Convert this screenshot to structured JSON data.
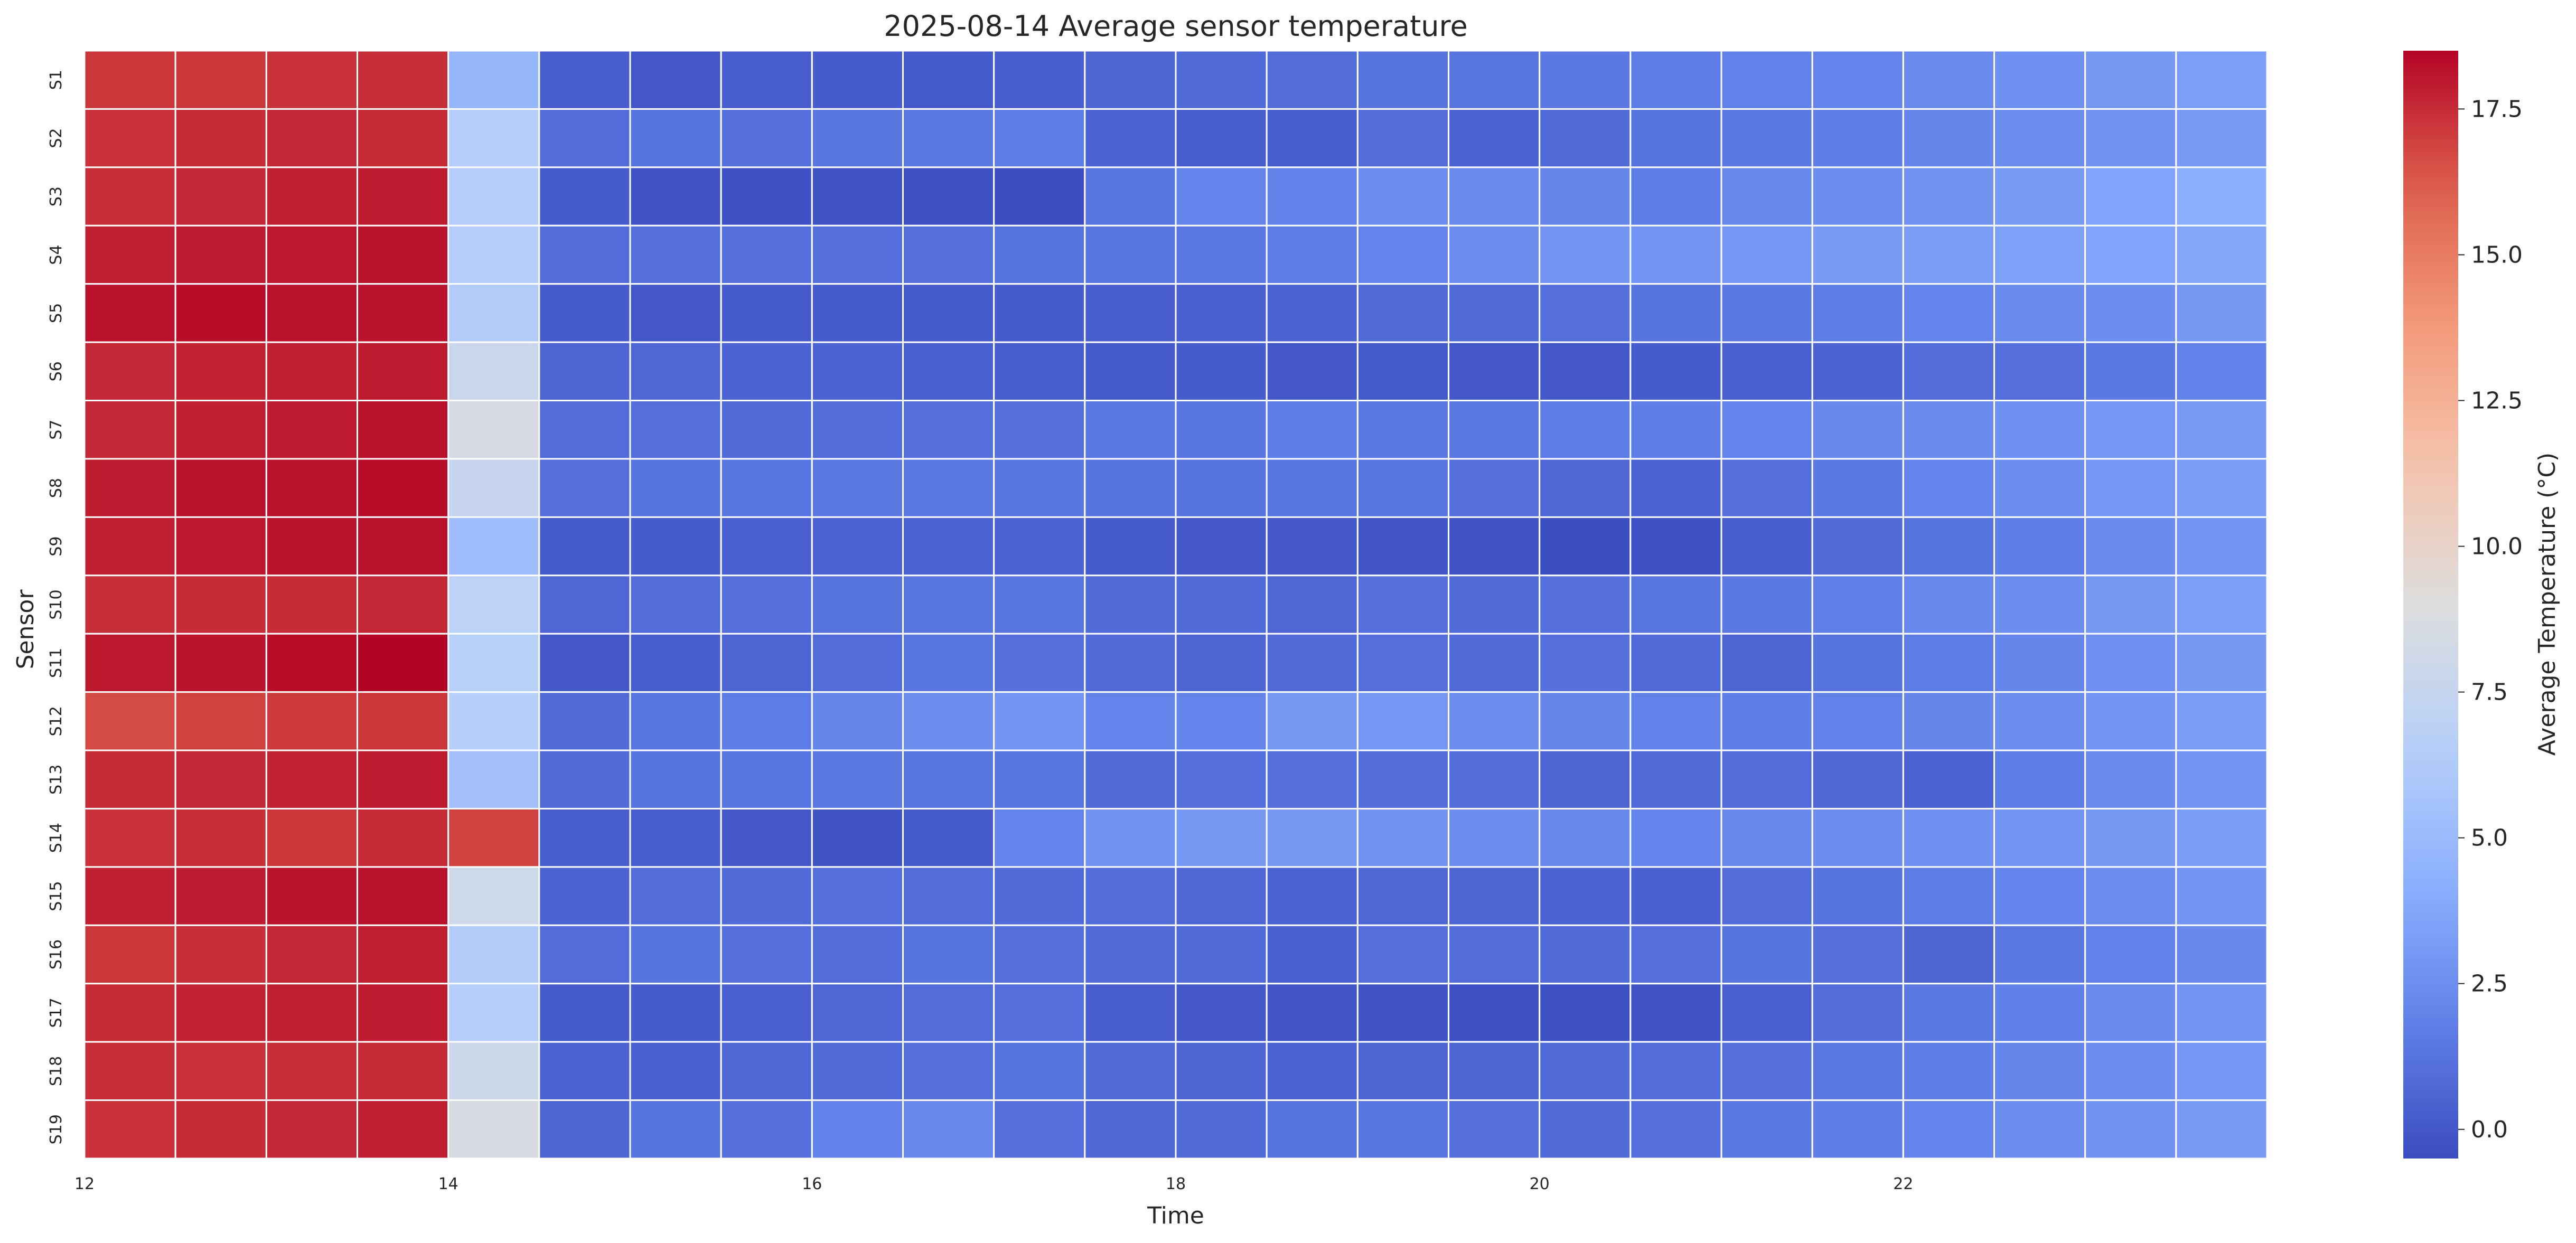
{
  "chart_data": {
    "type": "heatmap",
    "title": "2025-08-14 Average sensor temperature",
    "xlabel": "Time",
    "ylabel": "Sensor",
    "colorbar_label": "Average Temperature (°C)",
    "colormap": "coolwarm",
    "vmin": -0.5,
    "vmax": 18.5,
    "colorbar_ticks": [
      "0.0",
      "2.5",
      "5.0",
      "7.5",
      "10.0",
      "12.5",
      "15.0",
      "17.5"
    ],
    "x_tick_labels": [
      "12",
      "14",
      "16",
      "18",
      "20",
      "22"
    ],
    "x_tick_values": [
      12,
      14,
      16,
      18,
      20,
      22
    ],
    "x_range": [
      12,
      24
    ],
    "x_bins": [
      12.0,
      12.5,
      13.0,
      13.5,
      14.0,
      14.5,
      15.0,
      15.5,
      16.0,
      16.5,
      17.0,
      17.5,
      18.0,
      18.5,
      19.0,
      19.5,
      20.0,
      20.5,
      21.0,
      21.5,
      22.0,
      22.5,
      23.0,
      23.5
    ],
    "sensors": [
      "S1",
      "S2",
      "S3",
      "S4",
      "S5",
      "S6",
      "S7",
      "S8",
      "S9",
      "S10",
      "S11",
      "S12",
      "S13",
      "S14",
      "S15",
      "S16",
      "S17",
      "S18",
      "S19"
    ],
    "values": [
      [
        17.2,
        17.2,
        17.3,
        17.4,
        4.8,
        0.3,
        0.0,
        0.3,
        0.2,
        0.1,
        0.3,
        0.6,
        0.8,
        0.9,
        1.2,
        1.3,
        1.5,
        1.6,
        1.9,
        2.0,
        2.3,
        2.6,
        3.0,
        3.3
      ],
      [
        17.3,
        17.5,
        17.6,
        17.5,
        6.5,
        0.9,
        1.2,
        1.0,
        1.3,
        1.5,
        1.6,
        0.5,
        0.3,
        0.3,
        0.9,
        0.5,
        0.8,
        1.2,
        1.5,
        1.7,
        2.1,
        2.4,
        2.7,
        3.1
      ],
      [
        17.4,
        17.6,
        17.8,
        17.9,
        6.5,
        0.2,
        -0.2,
        -0.3,
        -0.2,
        -0.3,
        -0.4,
        1.3,
        2.0,
        1.9,
        2.4,
        2.3,
        2.1,
        1.7,
        2.2,
        2.5,
        2.7,
        3.1,
        3.6,
        4.2
      ],
      [
        17.8,
        17.9,
        18.0,
        18.1,
        6.5,
        0.9,
        1.1,
        1.0,
        1.0,
        1.0,
        1.2,
        1.3,
        1.4,
        1.6,
        2.0,
        2.5,
        2.8,
        2.8,
        2.9,
        3.1,
        3.2,
        3.4,
        3.6,
        3.8
      ],
      [
        18.2,
        18.3,
        18.2,
        18.1,
        6.3,
        0.2,
        0.0,
        0.1,
        0.1,
        0.1,
        0.2,
        0.3,
        0.4,
        0.5,
        0.8,
        0.8,
        1.0,
        1.2,
        1.5,
        1.6,
        2.0,
        2.3,
        2.5,
        3.0
      ],
      [
        17.6,
        17.7,
        17.8,
        17.9,
        7.7,
        0.6,
        0.7,
        0.5,
        0.5,
        0.4,
        0.3,
        0.1,
        0.2,
        0.0,
        0.1,
        0.0,
        0.0,
        0.2,
        0.4,
        0.5,
        0.9,
        1.1,
        1.5,
        1.9
      ],
      [
        17.6,
        17.8,
        17.9,
        18.2,
        8.5,
        0.9,
        1.0,
        0.8,
        0.9,
        1.1,
        1.1,
        1.4,
        1.3,
        1.6,
        1.5,
        1.4,
        1.6,
        1.7,
        2.0,
        2.2,
        2.3,
        2.6,
        2.9,
        3.1
      ],
      [
        17.9,
        18.2,
        18.2,
        18.3,
        7.6,
        1.0,
        1.2,
        1.3,
        1.5,
        1.5,
        1.3,
        1.2,
        1.2,
        1.3,
        1.3,
        1.0,
        0.7,
        0.5,
        1.0,
        1.5,
        2.0,
        2.5,
        2.9,
        3.2
      ],
      [
        17.8,
        18.0,
        18.1,
        18.2,
        5.3,
        0.1,
        0.2,
        0.4,
        0.5,
        0.5,
        0.5,
        0.1,
        0.0,
        0.0,
        -0.1,
        -0.2,
        -0.4,
        -0.3,
        0.3,
        0.8,
        1.2,
        1.7,
        2.3,
        2.8
      ],
      [
        17.4,
        17.5,
        17.5,
        17.6,
        6.9,
        0.7,
        0.9,
        1.0,
        1.2,
        1.3,
        1.3,
        0.8,
        0.8,
        0.7,
        1.1,
        0.8,
        1.1,
        1.3,
        1.5,
        1.8,
        2.2,
        2.5,
        3.0,
        3.3
      ],
      [
        18.0,
        18.1,
        18.3,
        18.5,
        6.7,
        0.0,
        0.3,
        0.6,
        0.9,
        1.3,
        1.1,
        0.8,
        0.6,
        0.8,
        1.0,
        0.8,
        1.1,
        0.8,
        0.6,
        1.2,
        1.6,
        2.1,
        2.6,
        3.0
      ],
      [
        16.7,
        16.9,
        17.1,
        17.2,
        6.6,
        0.8,
        1.3,
        1.6,
        2.1,
        2.5,
        2.8,
        2.0,
        2.0,
        3.0,
        2.9,
        2.5,
        2.1,
        1.9,
        1.7,
        1.9,
        2.1,
        2.5,
        2.8,
        3.2
      ],
      [
        17.5,
        17.6,
        17.7,
        17.9,
        5.4,
        0.8,
        1.2,
        1.3,
        1.5,
        1.3,
        1.3,
        0.8,
        1.0,
        1.0,
        0.9,
        0.9,
        0.6,
        0.8,
        0.9,
        0.7,
        0.5,
        1.6,
        2.3,
        2.8
      ],
      [
        17.3,
        17.4,
        17.2,
        17.5,
        16.9,
        0.3,
        0.3,
        0.0,
        -0.2,
        0.2,
        2.0,
        2.7,
        3.0,
        3.0,
        2.7,
        2.4,
        2.2,
        2.0,
        2.2,
        2.4,
        2.6,
        2.8,
        3.0,
        3.2
      ],
      [
        17.8,
        17.9,
        18.1,
        18.2,
        8.0,
        0.5,
        0.9,
        0.8,
        1.0,
        0.9,
        0.8,
        0.9,
        0.7,
        0.5,
        0.7,
        0.6,
        0.5,
        0.4,
        0.9,
        1.2,
        1.6,
        2.0,
        2.4,
        2.8
      ],
      [
        17.2,
        17.4,
        17.6,
        17.8,
        6.3,
        0.9,
        1.2,
        1.0,
        0.9,
        1.2,
        1.1,
        0.8,
        0.8,
        0.4,
        1.0,
        0.9,
        0.8,
        1.0,
        1.2,
        1.0,
        0.6,
        1.4,
        1.9,
        2.2
      ],
      [
        17.5,
        17.7,
        17.8,
        17.9,
        6.5,
        0.1,
        0.2,
        0.4,
        0.7,
        0.9,
        1.0,
        0.3,
        0.0,
        -0.1,
        -0.2,
        -0.3,
        -0.3,
        -0.2,
        0.4,
        0.9,
        1.4,
        1.8,
        2.3,
        2.8
      ],
      [
        17.4,
        17.3,
        17.4,
        17.5,
        7.9,
        0.5,
        0.4,
        0.7,
        0.8,
        1.1,
        1.2,
        0.8,
        0.6,
        0.5,
        0.6,
        0.6,
        0.8,
        0.9,
        1.1,
        1.4,
        1.7,
        2.1,
        2.5,
        2.9
      ],
      [
        17.3,
        17.5,
        17.6,
        17.8,
        8.6,
        0.6,
        1.2,
        1.1,
        1.9,
        2.2,
        1.0,
        0.7,
        0.8,
        1.2,
        1.3,
        1.1,
        0.8,
        1.0,
        1.4,
        1.7,
        2.0,
        2.4,
        2.7,
        3.1
      ]
    ]
  }
}
